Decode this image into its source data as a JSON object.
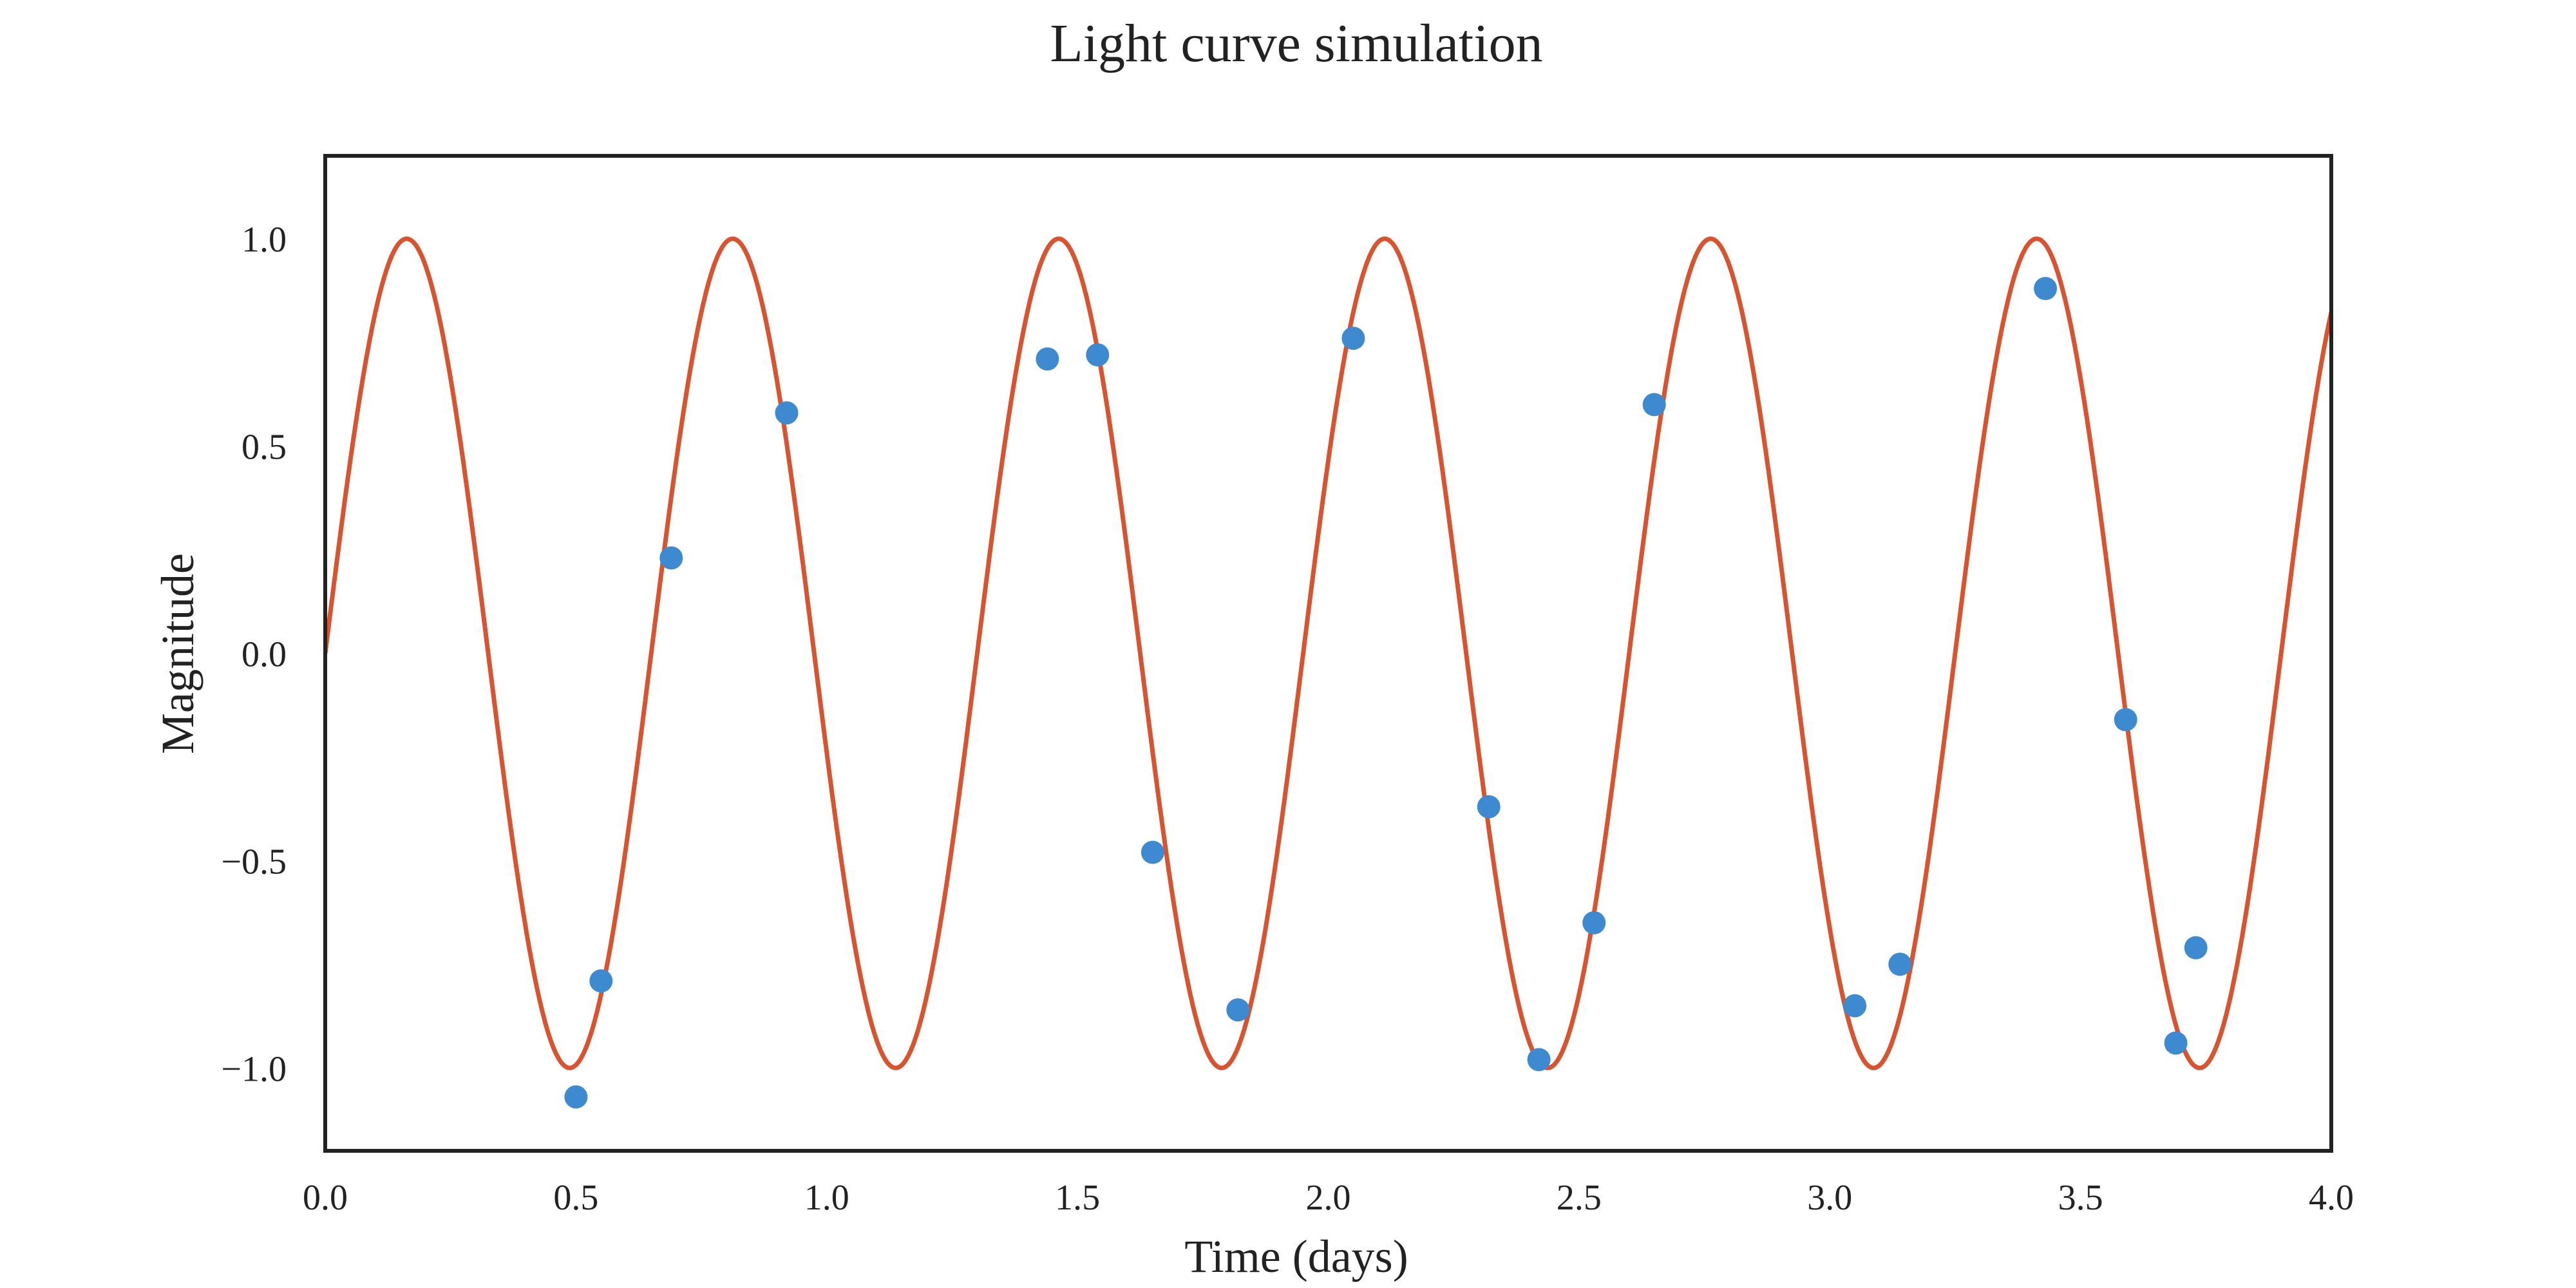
{
  "chart_data": {
    "type": "line",
    "title": "Light curve simulation",
    "xlabel": "Time (days)",
    "ylabel": "Magnitude",
    "xlim": [
      0.0,
      4.0
    ],
    "ylim": [
      -1.2,
      1.2
    ],
    "grid": false,
    "x_ticks": [
      "0.0",
      "0.5",
      "1.0",
      "1.5",
      "2.0",
      "2.5",
      "3.0",
      "3.5",
      "4.0"
    ],
    "y_ticks": [
      "−1.0",
      "−0.5",
      "0.0",
      "0.5",
      "1.0"
    ],
    "series": [
      {
        "kind": "line",
        "color": "#d9532f",
        "function": "sin",
        "amplitude": 1.0,
        "period": 0.65,
        "phase": 0.0
      },
      {
        "kind": "scatter",
        "color": "#3d8ad1",
        "x": [
          0.5,
          0.55,
          0.69,
          0.92,
          1.44,
          1.54,
          1.65,
          1.82,
          2.05,
          2.32,
          2.42,
          2.53,
          2.65,
          3.05,
          3.14,
          3.43,
          3.59,
          3.69,
          3.73
        ],
        "y": [
          -1.07,
          -0.79,
          0.23,
          0.58,
          0.71,
          0.72,
          -0.48,
          -0.86,
          0.76,
          -0.37,
          -0.98,
          -0.65,
          0.6,
          -0.85,
          -0.75,
          0.88,
          -0.16,
          -0.94,
          -0.71
        ]
      }
    ]
  }
}
